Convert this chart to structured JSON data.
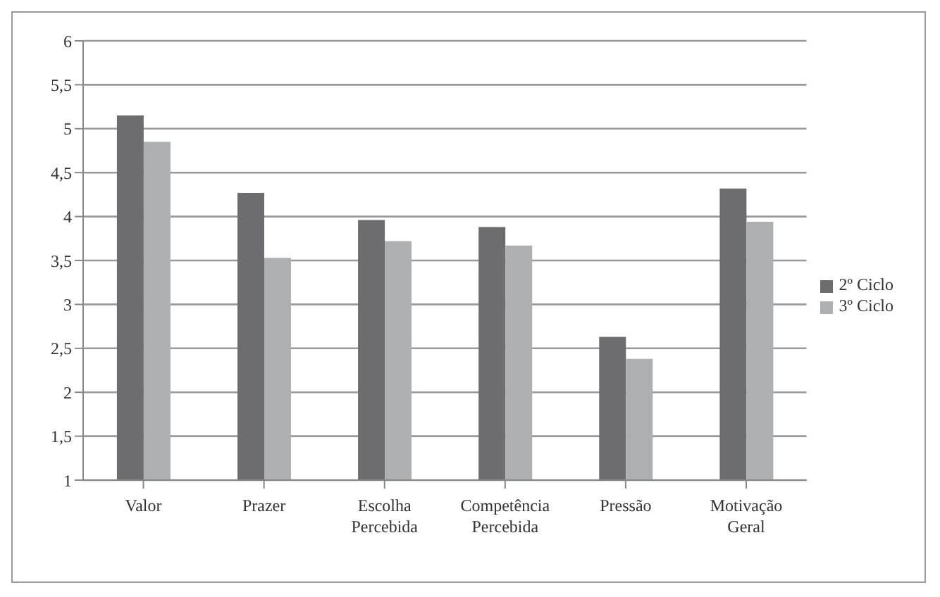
{
  "chart_data": {
    "type": "bar",
    "categories": [
      "Valor",
      "Prazer",
      "Escolha Percebida",
      "Competência Percebida",
      "Pressão",
      "Motivação Geral"
    ],
    "series": [
      {
        "name": "2º Ciclo",
        "color": "#6d6d6f",
        "values": [
          5.15,
          4.27,
          3.96,
          3.88,
          2.63,
          4.32
        ]
      },
      {
        "name": "3º Ciclo",
        "color": "#aeafb1",
        "values": [
          4.85,
          3.53,
          3.72,
          3.67,
          2.38,
          3.94
        ]
      }
    ],
    "ylim": [
      1,
      6
    ],
    "yticks": [
      1,
      {
        "value": 1.5,
        "label": "1,5"
      },
      2,
      {
        "value": 2.5,
        "label": "2,5"
      },
      3,
      {
        "value": 3.5,
        "label": "3,5"
      },
      4,
      {
        "value": 4.5,
        "label": "4,5"
      },
      5,
      {
        "value": 5.5,
        "label": "5,5"
      },
      6
    ],
    "grid": "y",
    "legend": "right"
  }
}
